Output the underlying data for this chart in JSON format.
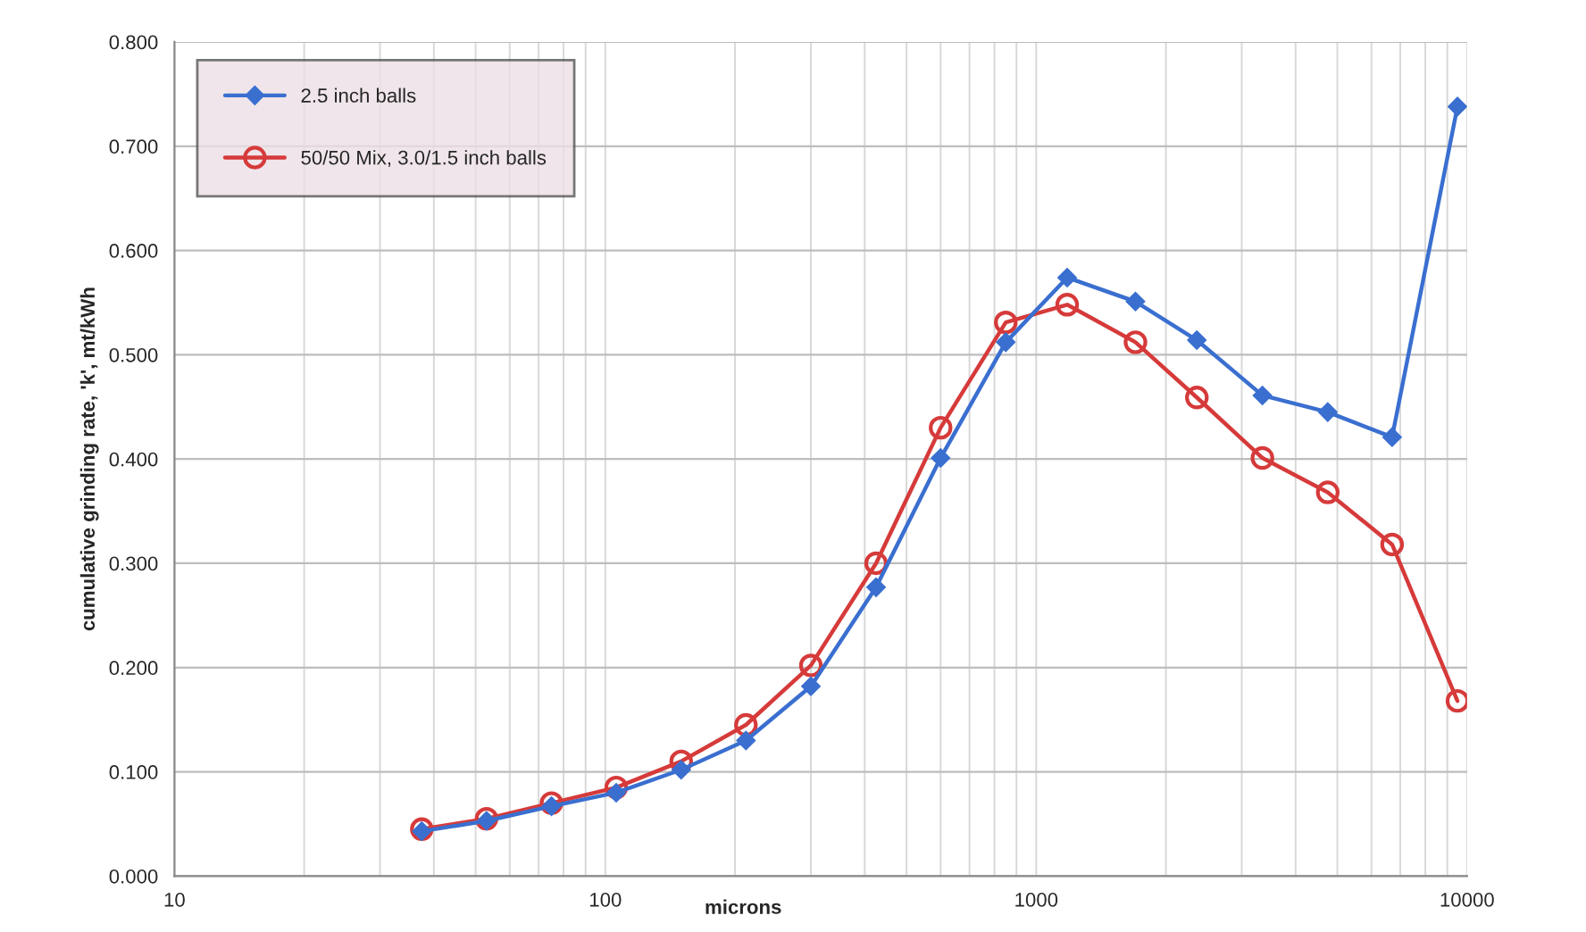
{
  "chart_data": {
    "type": "line",
    "xlabel": "microns",
    "ylabel": "cumulative grinding rate, 'k', mt/kWh",
    "log": "x",
    "xlim": [
      10,
      10000
    ],
    "xticks": [
      10,
      100,
      1000,
      10000
    ],
    "ylim": [
      0,
      0.8
    ],
    "yticks": [
      {
        "value": 0,
        "label": "0.000"
      },
      {
        "value": 0.1,
        "label": "0.100"
      },
      {
        "value": 0.2,
        "label": "0.200"
      },
      {
        "value": 0.3,
        "label": "0.300"
      },
      {
        "value": 0.4,
        "label": "0.400"
      },
      {
        "value": 0.5,
        "label": "0.500"
      },
      {
        "value": 0.6,
        "label": "0.600"
      },
      {
        "value": 0.7,
        "label": "0.700"
      },
      {
        "value": 0.8,
        "label": "0.800"
      }
    ],
    "x": [
      37.5,
      53,
      75,
      106,
      150,
      212,
      300,
      425,
      600,
      850,
      1180,
      1700,
      2360,
      3350,
      4750,
      6700,
      9500
    ],
    "grid": true,
    "legend": "top left",
    "series": [
      {
        "name": "2.5 inch balls",
        "color": "#3a6fd0",
        "marker": "diamond",
        "values": [
          0.043,
          0.053,
          0.067,
          0.08,
          0.102,
          0.13,
          0.182,
          0.277,
          0.401,
          0.512,
          0.574,
          0.551,
          0.514,
          0.461,
          0.445,
          0.421,
          0.738
        ]
      },
      {
        "name": "50/50 Mix, 3.0/1.5 inch balls",
        "color": "#d63a3a",
        "marker": "circle",
        "values": [
          0.045,
          0.055,
          0.07,
          0.085,
          0.11,
          0.145,
          0.202,
          0.3,
          0.43,
          0.531,
          0.548,
          0.512,
          0.459,
          0.401,
          0.368,
          0.318,
          0.168
        ]
      }
    ]
  }
}
